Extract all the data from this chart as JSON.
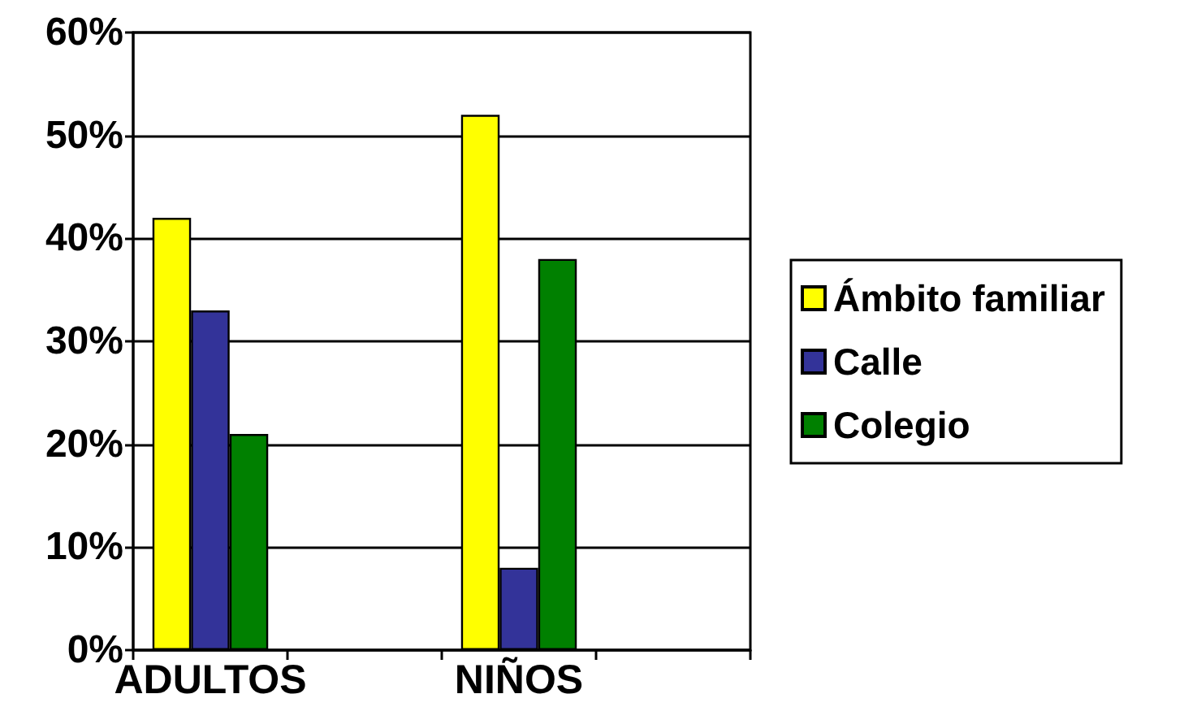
{
  "chart_data": {
    "type": "bar",
    "categories": [
      "ADULTOS",
      null,
      "NIÑOS",
      null
    ],
    "series": [
      {
        "name": "Ámbito familiar",
        "color": "#ffff00",
        "values": [
          42,
          null,
          52,
          null
        ]
      },
      {
        "name": "Calle",
        "color": "#333399",
        "values": [
          33,
          null,
          8,
          null
        ]
      },
      {
        "name": "Colegio",
        "color": "#008000",
        "values": [
          21,
          null,
          38,
          null
        ]
      }
    ],
    "ylim": [
      0,
      60
    ],
    "yticks": [
      {
        "value": 0,
        "label": "0%"
      },
      {
        "value": 10,
        "label": "10%"
      },
      {
        "value": 20,
        "label": "20%"
      },
      {
        "value": 30,
        "label": "30%"
      },
      {
        "value": 40,
        "label": "40%"
      },
      {
        "value": 50,
        "label": "50%"
      },
      {
        "value": 60,
        "label": "60%"
      }
    ],
    "grid": "y",
    "legend": "right"
  }
}
